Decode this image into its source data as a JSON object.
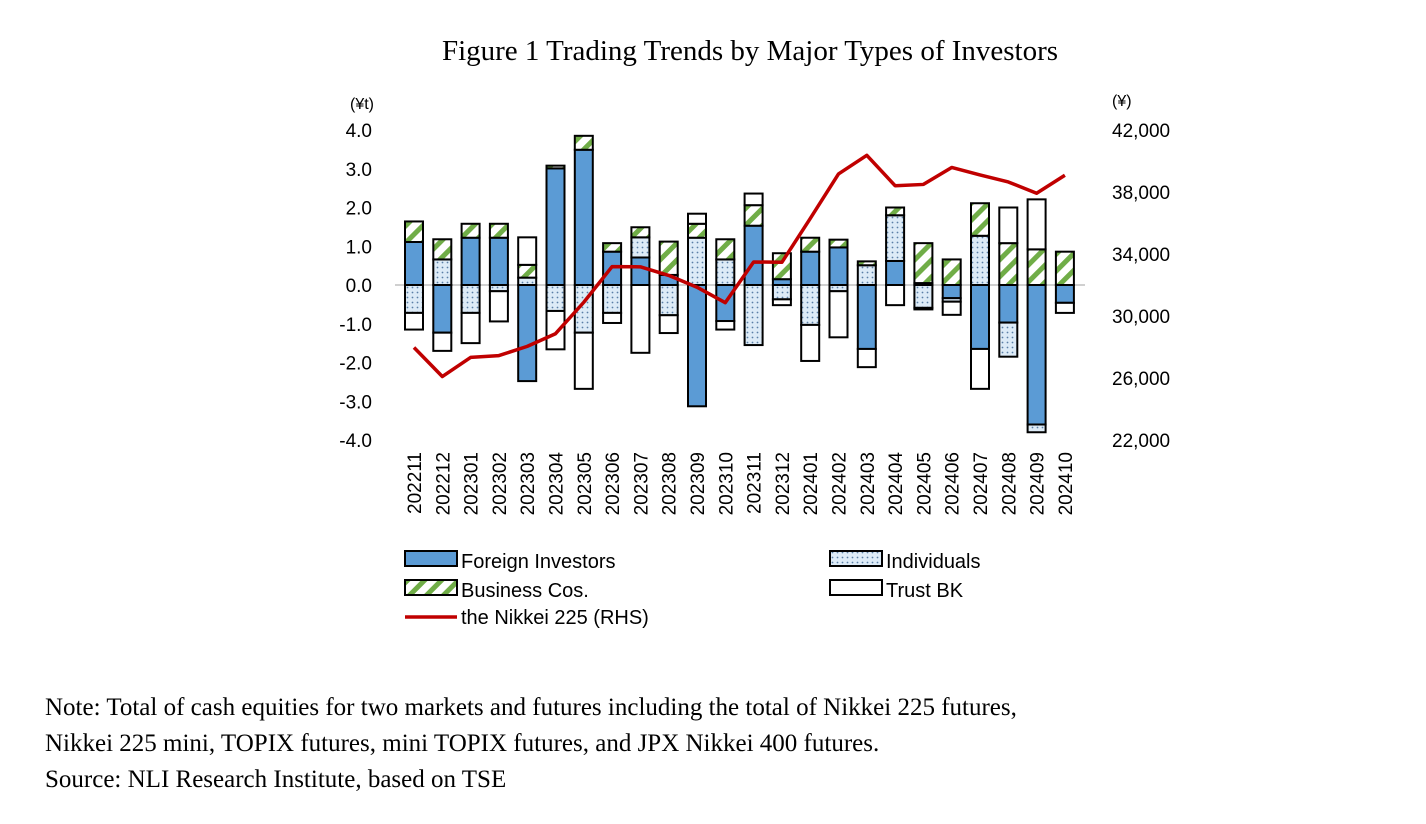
{
  "chart_data": {
    "type": "bar",
    "title": "Figure 1 Trading Trends by Major Types of Investors",
    "left_unit": "(¥t)",
    "right_unit": "(¥)",
    "ylim": [
      -4.0,
      4.0
    ],
    "y_ticks": [
      "4.0",
      "3.0",
      "2.0",
      "1.0",
      "0.0",
      "-1.0",
      "-2.0",
      "-3.0",
      "-4.0"
    ],
    "y2lim": [
      22000,
      42000
    ],
    "y2_ticks": [
      "42,000",
      "38,000",
      "34,000",
      "30,000",
      "26,000",
      "22,000"
    ],
    "categories": [
      "202211",
      "202212",
      "202301",
      "202302",
      "202303",
      "202304",
      "202305",
      "202306",
      "202307",
      "202308",
      "202309",
      "202310",
      "202311",
      "202312",
      "202401",
      "202402",
      "202403",
      "202404",
      "202405",
      "202406",
      "202407",
      "202408",
      "202409",
      "202410"
    ],
    "series": [
      {
        "name": "Foreign Investors",
        "type": "stacked-bar",
        "color": "#5b9bd5",
        "values": [
          1.11,
          -1.23,
          1.22,
          1.22,
          -2.48,
          3.01,
          3.49,
          0.86,
          0.71,
          0.26,
          -3.13,
          -0.93,
          1.53,
          0.15,
          0.86,
          0.97,
          -1.65,
          0.62,
          0.05,
          -0.34,
          -1.65,
          -0.97,
          -3.6,
          -0.46
        ]
      },
      {
        "name": "Individuals",
        "type": "stacked-bar",
        "color": "#ddebf7",
        "values": [
          -0.72,
          0.66,
          -0.72,
          -0.16,
          0.19,
          -0.67,
          -1.23,
          -0.72,
          0.52,
          -0.78,
          1.22,
          0.66,
          -1.55,
          -0.37,
          -1.03,
          -0.16,
          0.51,
          1.18,
          -0.59,
          -0.09,
          1.27,
          -0.88,
          -0.2,
          0.0
        ]
      },
      {
        "name": "Business Cos.",
        "type": "stacked-bar",
        "color": "#70ad47",
        "values": [
          0.53,
          0.52,
          0.36,
          0.36,
          0.33,
          0.07,
          0.36,
          0.22,
          0.26,
          0.86,
          0.36,
          0.52,
          0.53,
          0.67,
          0.36,
          0.2,
          0.1,
          0.2,
          1.03,
          0.66,
          0.84,
          1.08,
          0.92,
          0.86
        ]
      },
      {
        "name": "Trust BK",
        "type": "stacked-bar",
        "color": "#ffffff",
        "values": [
          -0.43,
          -0.47,
          -0.78,
          -0.78,
          0.71,
          -0.99,
          -1.45,
          -0.26,
          -1.75,
          -0.46,
          0.26,
          -0.22,
          0.3,
          -0.15,
          -0.93,
          -1.19,
          -0.47,
          -0.52,
          -0.04,
          -0.34,
          -1.03,
          0.92,
          1.29,
          -0.26
        ]
      },
      {
        "name": "the Nikkei 225 (RHS)",
        "type": "line",
        "axis": "right",
        "color": "#c00000",
        "values": [
          27968,
          26095,
          27327,
          27446,
          28041,
          28856,
          30888,
          33189,
          33172,
          32619,
          31858,
          30859,
          33487,
          33464,
          36287,
          39166,
          40369,
          38406,
          38488,
          39583,
          39102,
          38648,
          37920,
          39081
        ]
      }
    ],
    "legend": [
      "Foreign Investors",
      "Individuals",
      "Business Cos.",
      "Trust BK",
      "the Nikkei 225 (RHS)"
    ],
    "legend_placement": "bottom"
  },
  "notes": {
    "line1": "Note: Total of cash equities for two markets and futures including the total of Nikkei 225 futures,",
    "line2": "Nikkei 225 mini, TOPIX futures, mini TOPIX futures, and JPX Nikkei 400 futures.",
    "source": "Source: NLI Research Institute, based on TSE"
  }
}
